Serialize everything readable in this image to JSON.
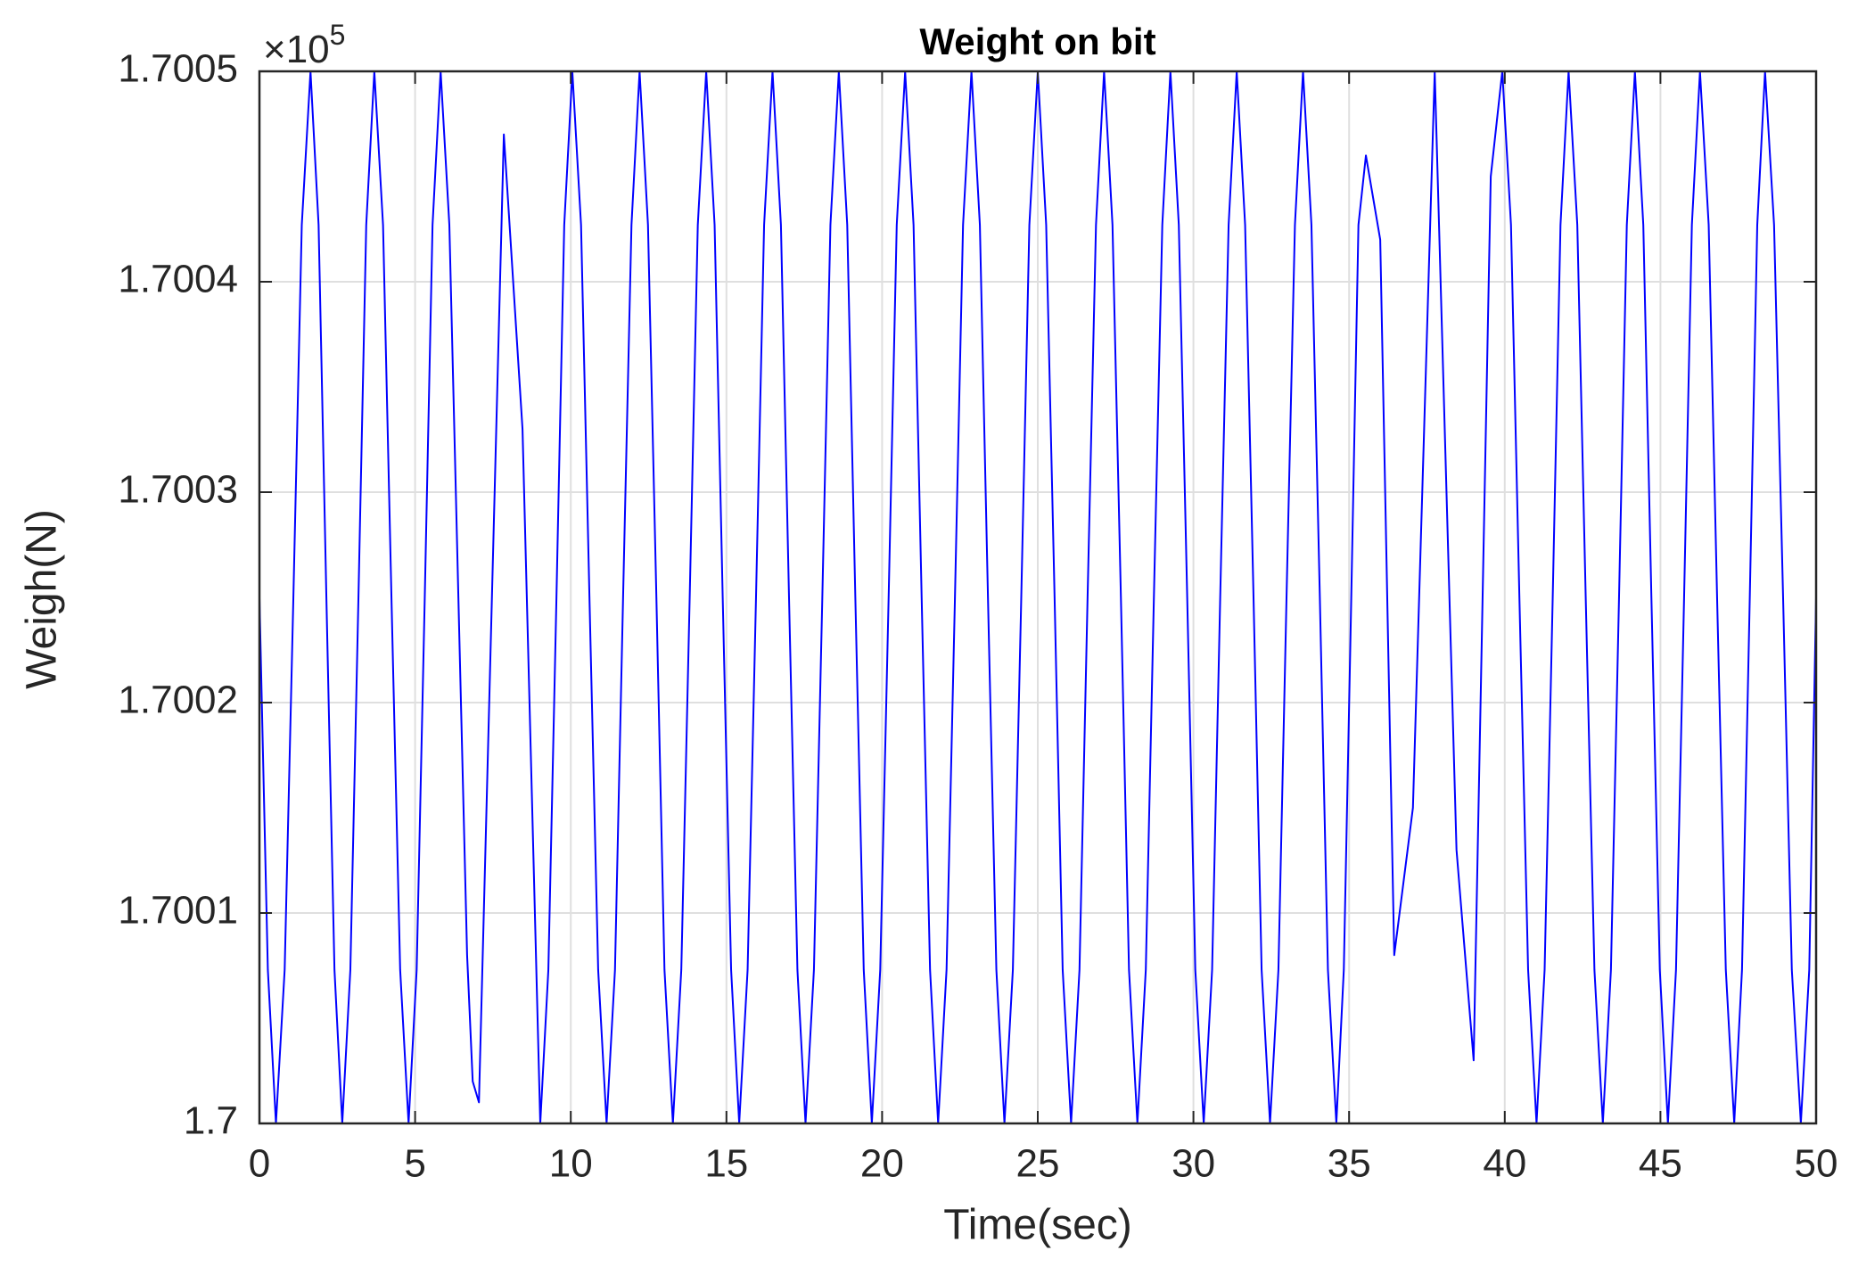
{
  "chart_data": {
    "type": "line",
    "title": "Weight on bit",
    "x_label": "Time(sec)",
    "y_label": "Weigh(N)",
    "y_scale_factor": {
      "base": "×10",
      "exponent": "5"
    },
    "color": "#0000ff",
    "grid": true,
    "xlim": [
      0,
      50
    ],
    "xticks": [
      0,
      5,
      10,
      15,
      20,
      25,
      30,
      35,
      40,
      45,
      50
    ],
    "ylim": [
      1.7,
      1.7005
    ],
    "yticks": [
      1.7,
      1.7001,
      1.7002,
      1.7003,
      1.7004,
      1.7005
    ],
    "x": [
      0,
      0.27,
      0.53,
      0.81,
      1.09,
      1.36,
      1.64,
      1.9,
      2.15,
      2.41,
      2.66,
      2.92,
      3.18,
      3.43,
      3.69,
      3.97,
      4.24,
      4.52,
      4.79,
      5.05,
      5.31,
      5.56,
      5.82,
      6.1,
      6.39,
      6.67,
      6.85,
      7.05,
      7.85,
      8.45,
      9.02,
      9.28,
      9.54,
      9.79,
      10.05,
      10.33,
      10.6,
      10.88,
      11.15,
      11.42,
      11.68,
      11.95,
      12.21,
      12.48,
      12.75,
      13.01,
      13.28,
      13.55,
      13.82,
      14.08,
      14.35,
      14.62,
      14.88,
      15.15,
      15.41,
      15.68,
      15.95,
      16.21,
      16.48,
      16.75,
      17.01,
      17.28,
      17.54,
      17.81,
      18.08,
      18.34,
      18.61,
      18.88,
      19.14,
      19.41,
      19.67,
      19.94,
      20.21,
      20.47,
      20.74,
      21.01,
      21.27,
      21.54,
      21.8,
      22.07,
      22.34,
      22.6,
      22.87,
      23.14,
      23.4,
      23.67,
      23.93,
      24.2,
      24.47,
      24.73,
      25,
      25.27,
      25.54,
      25.8,
      26.07,
      26.34,
      26.6,
      26.87,
      27.13,
      27.4,
      27.67,
      27.93,
      28.2,
      28.47,
      28.73,
      29,
      29.26,
      29.53,
      29.8,
      30.06,
      30.33,
      30.6,
      30.86,
      31.13,
      31.39,
      31.66,
      31.93,
      32.19,
      32.46,
      32.73,
      32.99,
      33.26,
      33.52,
      33.79,
      34.06,
      34.32,
      34.59,
      34.83,
      35.07,
      35.3,
      35.54,
      36,
      36.45,
      37.05,
      37.75,
      38.45,
      39,
      39.55,
      39.92,
      40.2,
      40.47,
      40.75,
      41.02,
      41.28,
      41.54,
      41.79,
      42.05,
      42.33,
      42.6,
      42.88,
      43.15,
      43.41,
      43.67,
      43.92,
      44.18,
      44.45,
      44.71,
      44.98,
      45.24,
      45.5,
      45.76,
      46.01,
      46.27,
      46.55,
      46.82,
      47.1,
      47.37,
      47.62,
      47.87,
      48.11,
      48.36,
      48.65,
      48.94,
      49.22,
      49.51,
      49.78,
      50
    ],
    "values": [
      1.70025,
      1.700073,
      1.7,
      1.700073,
      1.70025,
      1.700427,
      1.7005,
      1.700427,
      1.70025,
      1.700073,
      1.7,
      1.700073,
      1.70025,
      1.700427,
      1.7005,
      1.700427,
      1.70025,
      1.700073,
      1.7,
      1.700073,
      1.70025,
      1.700427,
      1.7005,
      1.700427,
      1.70025,
      1.70008,
      1.70002,
      1.70001,
      1.70047,
      1.70033,
      1.7,
      1.700073,
      1.70025,
      1.700427,
      1.7005,
      1.700427,
      1.70025,
      1.700073,
      1.7,
      1.700073,
      1.70025,
      1.700427,
      1.7005,
      1.700427,
      1.70025,
      1.700073,
      1.7,
      1.700073,
      1.70025,
      1.700427,
      1.7005,
      1.700427,
      1.70025,
      1.700073,
      1.7,
      1.700073,
      1.70025,
      1.700427,
      1.7005,
      1.700427,
      1.70025,
      1.700073,
      1.7,
      1.700073,
      1.70025,
      1.700427,
      1.7005,
      1.700427,
      1.70025,
      1.700073,
      1.7,
      1.700073,
      1.70025,
      1.700427,
      1.7005,
      1.700427,
      1.70025,
      1.700073,
      1.7,
      1.700073,
      1.70025,
      1.700427,
      1.7005,
      1.700427,
      1.70025,
      1.700073,
      1.7,
      1.700073,
      1.70025,
      1.700427,
      1.7005,
      1.700427,
      1.70025,
      1.700073,
      1.7,
      1.700073,
      1.70025,
      1.700427,
      1.7005,
      1.700427,
      1.70025,
      1.700073,
      1.7,
      1.700073,
      1.70025,
      1.700427,
      1.7005,
      1.700427,
      1.70025,
      1.700073,
      1.7,
      1.700073,
      1.70025,
      1.700427,
      1.7005,
      1.700427,
      1.70025,
      1.700073,
      1.7,
      1.700073,
      1.70025,
      1.700427,
      1.7005,
      1.700427,
      1.70025,
      1.700073,
      1.7,
      1.700073,
      1.70025,
      1.700427,
      1.70046,
      1.70042,
      1.70008,
      1.70015,
      1.7005,
      1.70013,
      1.70003,
      1.70045,
      1.7005,
      1.700427,
      1.70025,
      1.700073,
      1.7,
      1.700073,
      1.70025,
      1.700427,
      1.7005,
      1.700427,
      1.70025,
      1.700073,
      1.7,
      1.700073,
      1.70025,
      1.700427,
      1.7005,
      1.700427,
      1.70025,
      1.700073,
      1.7,
      1.700073,
      1.70025,
      1.700427,
      1.7005,
      1.700427,
      1.70025,
      1.700073,
      1.7,
      1.700073,
      1.70025,
      1.700427,
      1.7005,
      1.700427,
      1.70025,
      1.700073,
      1.7,
      1.700073,
      1.70025
    ]
  }
}
